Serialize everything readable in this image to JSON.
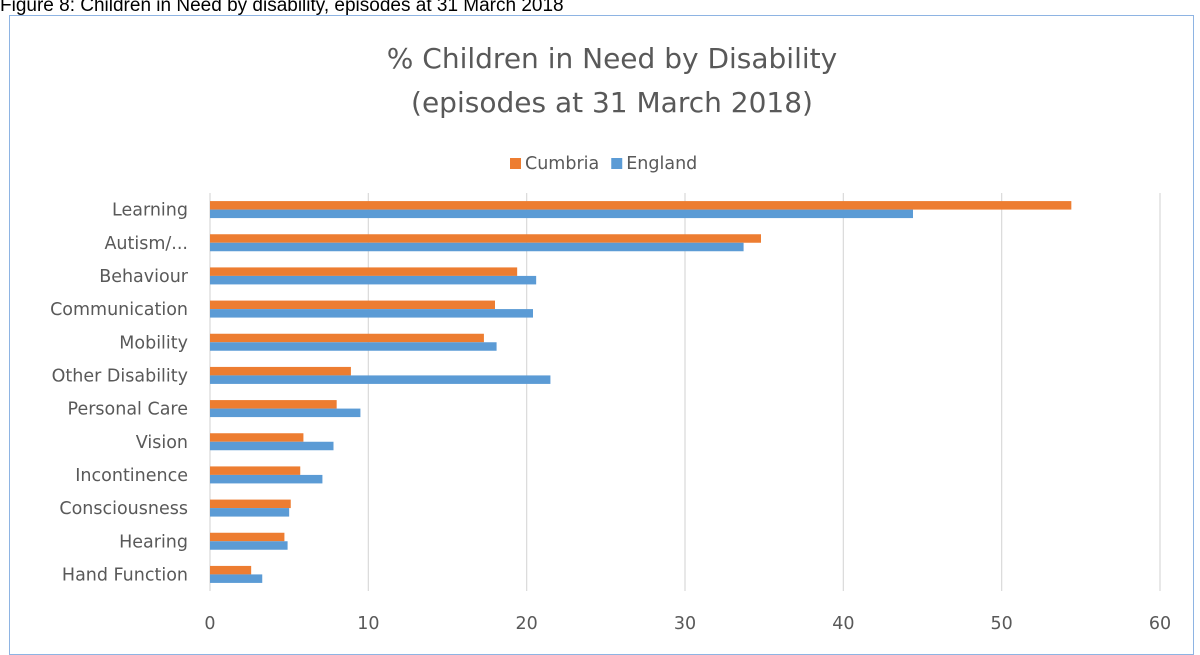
{
  "figure_caption": "Figure 8: Children in Need by disability, episodes at 31 March 2018",
  "chart_data": {
    "type": "bar",
    "orientation": "horizontal",
    "title_line1": "% Children in Need by Disability",
    "title_line2": "(episodes at 31 March 2018)",
    "categories": [
      "Learning",
      "Autism/...",
      "Behaviour",
      "Communication",
      "Mobility",
      "Other Disability",
      "Personal Care",
      "Vision",
      "Incontinence",
      "Consciousness",
      "Hearing",
      "Hand Function"
    ],
    "series": [
      {
        "name": "Cumbria",
        "color": "#ed7d31",
        "values": [
          54.4,
          34.8,
          19.4,
          18.0,
          17.3,
          8.9,
          8.0,
          5.9,
          5.7,
          5.1,
          4.7,
          2.6
        ]
      },
      {
        "name": "England",
        "color": "#5b9bd5",
        "values": [
          44.4,
          33.7,
          20.6,
          20.4,
          18.1,
          21.5,
          9.5,
          7.8,
          7.1,
          5.0,
          4.9,
          3.3
        ]
      }
    ],
    "xlim": [
      0,
      60
    ],
    "xticks": [
      0,
      10,
      20,
      30,
      40,
      50,
      60
    ],
    "grid": true,
    "legend_position": "top"
  }
}
